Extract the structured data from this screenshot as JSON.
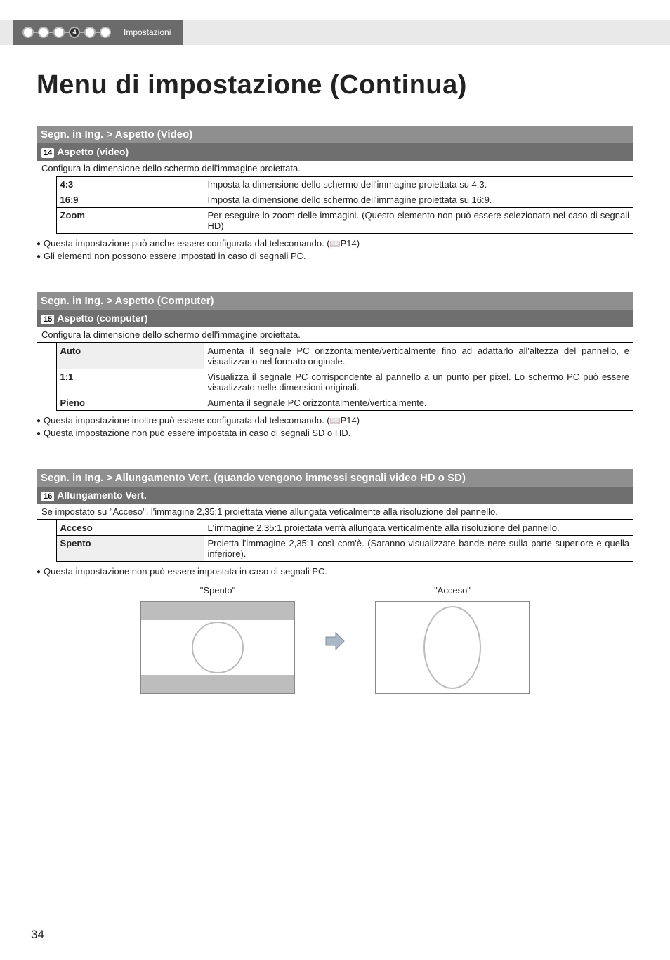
{
  "topbar": {
    "steps_total": 6,
    "steps_active_index": 3,
    "breadcrumb_label": "Impostazioni",
    "dot_fill_inactive": "#ffffff",
    "dot_fill_active": "#2f2f2f",
    "dot_stroke": "#b5b5b5",
    "strip_bg": "#6b6b6b",
    "topbar_bg": "#e9e9e9"
  },
  "page": {
    "title": "Menu di impostazione (Continua)",
    "page_number": "34"
  },
  "sections": [
    {
      "header": "Segn. in Ing. > Aspetto (Video)",
      "badge_num": "14",
      "sub_title": "Aspetto (video)",
      "description": "Configura la dimensione dello schermo dell'immagine proiettata.",
      "rows": [
        {
          "key": "4:3",
          "shaded": false,
          "val": "Imposta la dimensione dello schermo dell'immagine proiettata su 4:3."
        },
        {
          "key": "16:9",
          "shaded": false,
          "val": "Imposta la dimensione dello schermo dell'immagine proiettata su 16:9."
        },
        {
          "key": "Zoom",
          "shaded": false,
          "val": "Per eseguire lo zoom delle immagini. (Questo elemento non può essere selezionato nel caso di segnali HD)"
        }
      ],
      "notes": [
        {
          "text": "Questa impostazione può anche essere configurata dal telecomando. (",
          "ref": "P14",
          "tail": ")"
        },
        {
          "text": "Gli elementi non possono essere impostati in caso di segnali PC."
        }
      ]
    },
    {
      "header": "Segn. in Ing. > Aspetto (Computer)",
      "badge_num": "15",
      "sub_title": "Aspetto (computer)",
      "description": "Configura la dimensione dello schermo dell'immagine proiettata.",
      "rows": [
        {
          "key": "Auto",
          "shaded": true,
          "val": "Aumenta il segnale PC orizzontalmente/verticalmente fino ad adattarlo all'altezza del pannello, e visualizzarlo nel formato originale."
        },
        {
          "key": "1:1",
          "shaded": false,
          "val": "Visualizza il segnale PC corrispondente al pannello a un punto per pixel. Lo schermo PC può essere visualizzato nelle dimensioni originali."
        },
        {
          "key": "Pieno",
          "shaded": false,
          "val": "Aumenta il segnale PC orizzontalmente/verticalmente."
        }
      ],
      "notes": [
        {
          "text": "Questa impostazione inoltre può essere configurata dal telecomando. (",
          "ref": "P14",
          "tail": ")"
        },
        {
          "text": "Questa impostazione non può essere impostata in caso di segnali SD o HD."
        }
      ]
    },
    {
      "header": "Segn. in Ing. > Allungamento Vert. (quando vengono immessi segnali video HD o SD)",
      "badge_num": "16",
      "sub_title": "Allungamento Vert.",
      "description": "Se impostato su \"Acceso\", l'immagine 2,35:1 proiettata viene allungata veticalmente alla risoluzione del pannello.",
      "rows": [
        {
          "key": "Acceso",
          "shaded": false,
          "val": "L'immagine 2,35:1 proiettata verrà allungata verticalmente alla risoluzione del pannello."
        },
        {
          "key": "Spento",
          "shaded": true,
          "val": "Proietta l'immagine 2,35:1 così com'è. (Saranno visualizzate bande nere sulla parte superiore e quella inferiore)."
        }
      ],
      "notes": [
        {
          "text": "Questa impostazione non può essere impostata in caso di segnali PC."
        }
      ],
      "illustration": {
        "left_caption": "\"Spento\"",
        "right_caption": "\"Acceso\"",
        "box_stroke": "#888888",
        "letterbox_fill": "#bdbdbd",
        "white_fill": "#ffffff",
        "circle_stroke": "#bbbbbb",
        "arrow_fill": "#a9b7c6",
        "left_box_w": 220,
        "left_box_h": 132,
        "right_box_w": 220,
        "right_box_h": 132
      }
    }
  ]
}
